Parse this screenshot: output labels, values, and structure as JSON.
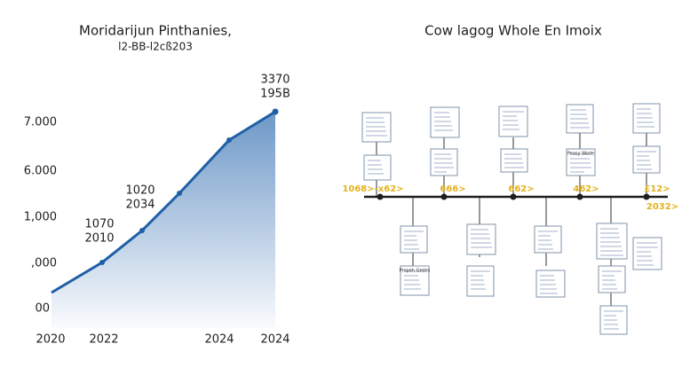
{
  "left": {
    "title": "Moridarijun Pinthanies,",
    "subtitle": "l2-BB-l2cß203",
    "y_labels": [
      "7.000",
      "6.000",
      "1,000",
      ",000",
      "00"
    ],
    "x_labels": [
      "2020",
      "2022",
      "2024",
      "2024"
    ],
    "annotations": [
      "3370",
      "195B",
      "1020",
      "2034",
      "1070",
      "2010"
    ]
  },
  "right": {
    "title": "Cow lagog Whole En Imoix",
    "timeline_labels": [
      "1068>-x62>",
      "666>",
      "662>",
      "462>",
      "£12>",
      "2032>"
    ],
    "card_labels": [
      "Propeh Gedes",
      "Peasy Wode"
    ]
  }
}
